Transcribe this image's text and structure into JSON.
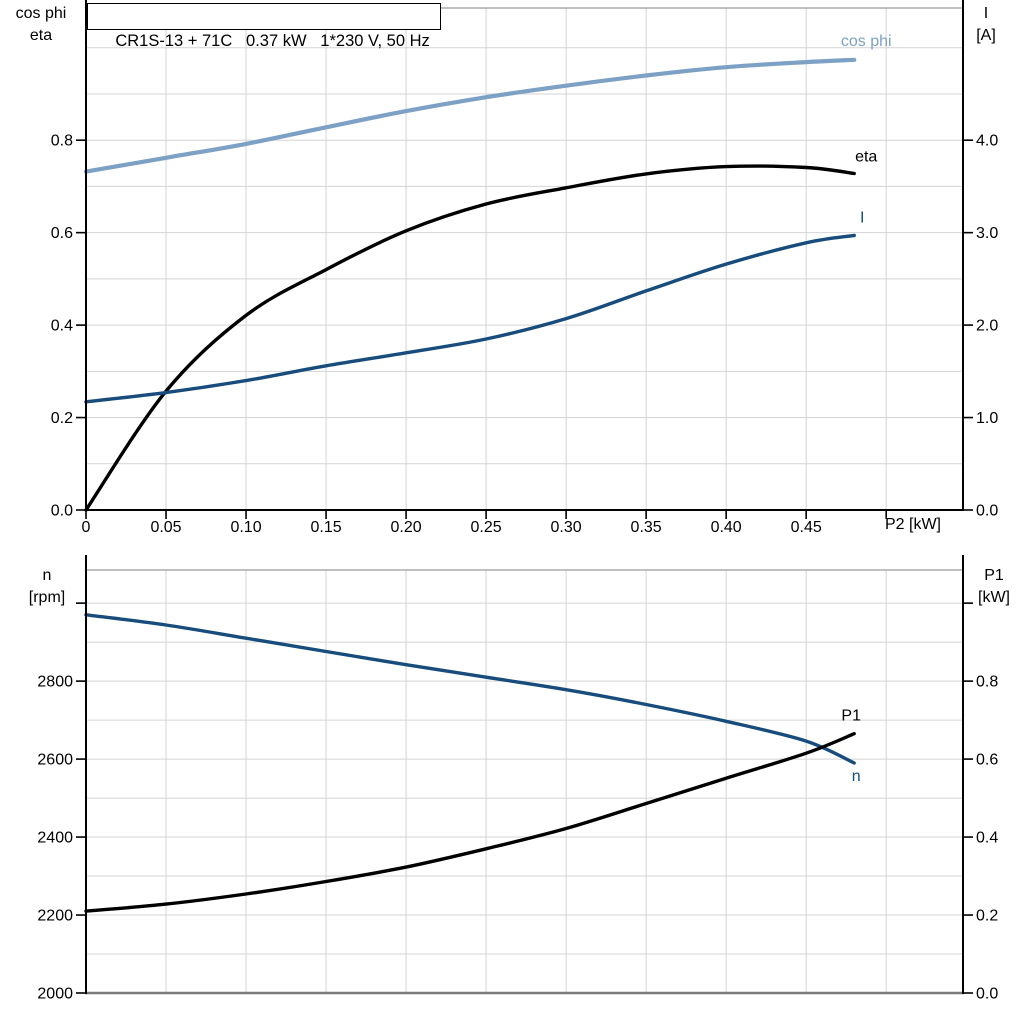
{
  "title": "CR1S-13 + 71C   0.37 kW   1*230 V, 50 Hz",
  "colors": {
    "curve_black": "#000000",
    "curve_dark_blue": "#174c7d",
    "curve_light_blue": "#7da0c5",
    "gridline": "#d4d4d4",
    "frame_gray": "#9b9b9b",
    "frame_bottom_gray": "#7a7a7a",
    "axis": "#000000"
  },
  "chart_data": [
    {
      "type": "line",
      "title": "CR1S-13 + 71C   0.37 kW   1*230 V, 50 Hz",
      "x_axis": {
        "label": "P2 [kW]",
        "min": 0,
        "max": 0.548,
        "ticks": [
          0,
          0.05,
          0.1,
          0.15,
          0.2,
          0.25,
          0.3,
          0.35,
          0.4,
          0.45,
          0.5
        ],
        "tick_labels": [
          "0",
          "0.05",
          "0.10",
          "0.15",
          "0.20",
          "0.25",
          "0.30",
          "0.35",
          "0.40",
          "0.45",
          ""
        ],
        "grid": [
          0.05,
          0.1,
          0.15,
          0.2,
          0.25,
          0.3,
          0.35,
          0.4,
          0.45,
          0.5
        ]
      },
      "y_left": {
        "label_lines": [
          "cos phi",
          "eta"
        ],
        "min": 0,
        "max": 1.086,
        "ticks": [
          0,
          0.2,
          0.4,
          0.6,
          0.8
        ],
        "tick_labels": [
          "0.0",
          "0.2",
          "0.4",
          "0.6",
          "0.8"
        ],
        "grid_min": 0.1,
        "grid_max": 1.0,
        "grid_step": 0.1
      },
      "y_right": {
        "label_lines": [
          "I",
          "[A]"
        ],
        "min": 0,
        "max": 5.43,
        "ticks": [
          0,
          1,
          2,
          3,
          4
        ],
        "tick_labels": [
          "0.0",
          "1.0",
          "2.0",
          "3.0",
          "4.0"
        ]
      },
      "series": [
        {
          "name": "cos phi",
          "axis": "left",
          "color": "#7da0c5",
          "x": [
            0,
            0.05,
            0.1,
            0.15,
            0.2,
            0.25,
            0.3,
            0.35,
            0.4,
            0.45,
            0.48
          ],
          "values": [
            0.732,
            0.762,
            0.792,
            0.828,
            0.863,
            0.893,
            0.918,
            0.94,
            0.958,
            0.969,
            0.974
          ]
        },
        {
          "name": "eta",
          "axis": "left",
          "color": "#000000",
          "x": [
            0,
            0.05,
            0.1,
            0.15,
            0.2,
            0.25,
            0.3,
            0.35,
            0.4,
            0.45,
            0.48
          ],
          "values": [
            0,
            0.257,
            0.421,
            0.52,
            0.604,
            0.662,
            0.697,
            0.727,
            0.743,
            0.741,
            0.728
          ]
        },
        {
          "name": "I",
          "axis": "right",
          "color": "#174c7d",
          "x": [
            0,
            0.05,
            0.1,
            0.15,
            0.2,
            0.25,
            0.3,
            0.35,
            0.4,
            0.45,
            0.48
          ],
          "values": [
            1.17,
            1.27,
            1.4,
            1.56,
            1.7,
            1.85,
            2.07,
            2.37,
            2.66,
            2.89,
            2.97
          ]
        }
      ]
    },
    {
      "type": "line",
      "x_axis": {
        "label": "",
        "min": 0,
        "max": 0.548,
        "ticks": [],
        "tick_labels": [],
        "grid": [
          0.05,
          0.1,
          0.15,
          0.2,
          0.25,
          0.3,
          0.35,
          0.4,
          0.45,
          0.5
        ]
      },
      "y_left": {
        "label_lines": [
          "n",
          "[rpm]"
        ],
        "min": 2000,
        "max": 3085,
        "ticks": [
          2000,
          2200,
          2400,
          2600,
          2800,
          3000
        ],
        "tick_labels": [
          "2000",
          "2200",
          "2400",
          "2600",
          "2800",
          ""
        ],
        "grid_min": 2100,
        "grid_max": 3000,
        "grid_step": 100
      },
      "y_right": {
        "label_lines": [
          "P1",
          "[kW]"
        ],
        "min": 0,
        "max": 1.085,
        "ticks": [
          0,
          0.2,
          0.4,
          0.6,
          0.8,
          1.0
        ],
        "tick_labels": [
          "0.0",
          "0.2",
          "0.4",
          "0.6",
          "0.8",
          ""
        ]
      },
      "series": [
        {
          "name": "n",
          "axis": "left",
          "color": "#174c7d",
          "x": [
            0,
            0.05,
            0.1,
            0.15,
            0.2,
            0.25,
            0.3,
            0.35,
            0.4,
            0.45,
            0.48
          ],
          "values": [
            2970,
            2944,
            2910,
            2876,
            2842,
            2810,
            2778,
            2740,
            2697,
            2646,
            2590
          ]
        },
        {
          "name": "P1",
          "axis": "right",
          "color": "#000000",
          "x": [
            0,
            0.05,
            0.1,
            0.15,
            0.2,
            0.25,
            0.3,
            0.35,
            0.4,
            0.45,
            0.48
          ],
          "values": [
            0.21,
            0.228,
            0.254,
            0.286,
            0.323,
            0.37,
            0.422,
            0.486,
            0.551,
            0.615,
            0.665
          ]
        }
      ]
    }
  ]
}
